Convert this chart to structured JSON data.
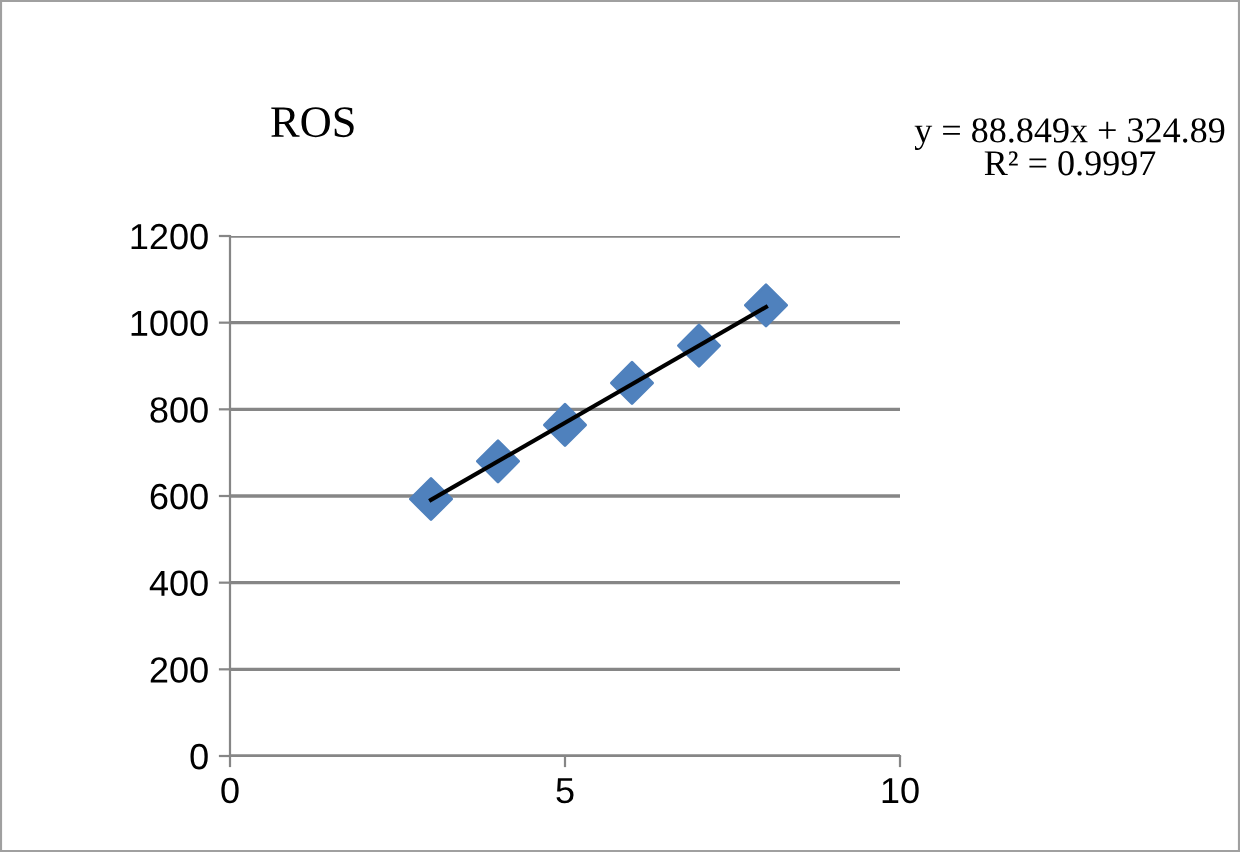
{
  "chart_data": {
    "type": "scatter",
    "title": "ROS",
    "annotations": [
      "y = 88.849x + 324.89\nR² = 0.9997"
    ],
    "series": [
      {
        "color": "#4f81bd",
        "marker": "diamond",
        "x": [
          3,
          4,
          5,
          6,
          7,
          8
        ],
        "values": [
          593,
          680,
          764,
          861,
          947,
          1040
        ]
      },
      {
        "type": "line",
        "color": "#000000",
        "marker": "none",
        "line_style": "solid",
        "x": [
          3,
          8
        ],
        "values": [
          591,
          1036
        ]
      }
    ],
    "xlim": [
      0,
      10
    ],
    "xticks": [
      0,
      5,
      10
    ],
    "ylim": [
      0,
      1200
    ],
    "yticks": [
      0,
      200,
      400,
      600,
      800,
      1000,
      1200
    ],
    "grid": "y",
    "legend": false
  }
}
